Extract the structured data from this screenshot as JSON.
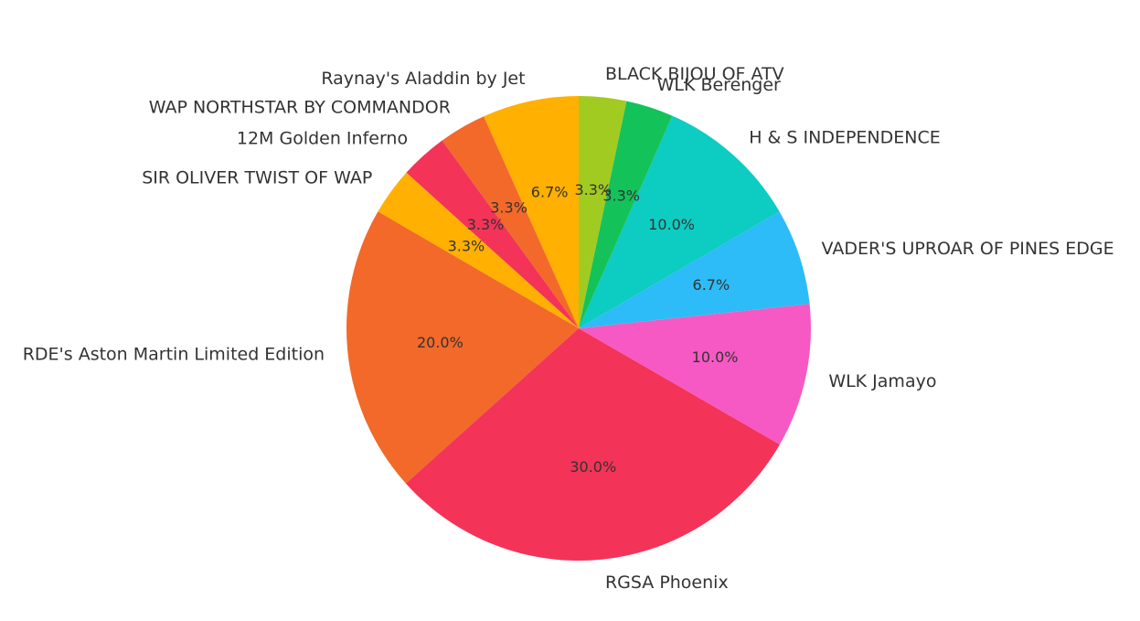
{
  "chart_data": {
    "type": "pie",
    "title": "",
    "start_angle_deg": 90,
    "direction": "counterclockwise",
    "slices": [
      {
        "label": "Raynay's Aladdin by Jet",
        "value": 6.7,
        "pct_label": "6.7%",
        "color": "#FFB000"
      },
      {
        "label": "WAP NORTHSTAR BY COMMANDOR",
        "value": 3.3,
        "pct_label": "3.3%",
        "color": "#F2692A"
      },
      {
        "label": "12M Golden Inferno",
        "value": 3.3,
        "pct_label": "3.3%",
        "color": "#F43358"
      },
      {
        "label": "SIR OLIVER TWIST OF WAP",
        "value": 3.3,
        "pct_label": "3.3%",
        "color": "#FFB000"
      },
      {
        "label": "RDE's Aston Martin Limited Edition",
        "value": 20.0,
        "pct_label": "20.0%",
        "color": "#F2692A"
      },
      {
        "label": "RGSA Phoenix",
        "value": 30.0,
        "pct_label": "30.0%",
        "color": "#F43358"
      },
      {
        "label": "WLK Jamayo",
        "value": 10.0,
        "pct_label": "10.0%",
        "color": "#F659C3"
      },
      {
        "label": "VADER'S UPROAR OF PINES EDGE",
        "value": 6.7,
        "pct_label": "6.7%",
        "color": "#2DBCF7"
      },
      {
        "label": "H & S INDEPENDENCE",
        "value": 10.0,
        "pct_label": "10.0%",
        "color": "#0DCCC2"
      },
      {
        "label": "WLK Berenger",
        "value": 3.3,
        "pct_label": "3.3%",
        "color": "#14C25A"
      },
      {
        "label": "BLACK BIJOU OF ATV",
        "value": 3.3,
        "pct_label": "3.3%",
        "color": "#A1CB21"
      }
    ]
  }
}
